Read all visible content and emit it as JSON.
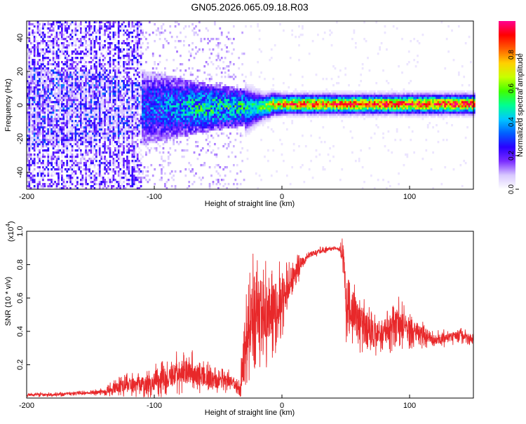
{
  "chart_data": [
    {
      "type": "heatmap",
      "title": "GN05.2026.065.09.18.R03",
      "xlabel": "Height of straight line (km)",
      "ylabel": "Frequency (Hz)",
      "xlim": [
        -200,
        150
      ],
      "ylim": [
        -50,
        50
      ],
      "xticks": [
        -200,
        -100,
        0,
        100
      ],
      "xtick_labels": [
        "-200",
        "-100",
        "0",
        "100"
      ],
      "yticks": [
        -40,
        -20,
        0,
        20,
        40
      ],
      "ytick_labels": [
        "-40",
        "-20",
        "0",
        "20",
        "40"
      ],
      "colorbar": {
        "label": "Normalized spectral amplitude",
        "range": [
          0,
          1
        ],
        "ticks": [
          0.0,
          0.2,
          0.4,
          0.6,
          0.8
        ],
        "tick_labels": [
          "0.0",
          "0.2",
          "0.4",
          "0.6",
          "0.8"
        ],
        "colors": [
          "#ffffff",
          "#d8c8ff",
          "#7a2cff",
          "#2a00ff",
          "#0060ff",
          "#00c8ff",
          "#00ff90",
          "#40ff00",
          "#c8ff00",
          "#ffd000",
          "#ff6000",
          "#ff0000",
          "#ff0090"
        ]
      },
      "profile": {
        "band_halfwidth_hz": [
          [
            -200,
            24
          ],
          [
            -140,
            20
          ],
          [
            -110,
            14
          ],
          [
            -60,
            9
          ],
          [
            -30,
            7
          ],
          [
            -15,
            4
          ],
          [
            0,
            3
          ],
          [
            150,
            3
          ]
        ],
        "center_amplitude": [
          [
            -200,
            0.25
          ],
          [
            -140,
            0.25
          ],
          [
            -100,
            0.35
          ],
          [
            -60,
            0.5
          ],
          [
            -20,
            0.5
          ],
          [
            0,
            0.85
          ],
          [
            150,
            0.9
          ]
        ]
      }
    },
    {
      "type": "line",
      "xlabel": "Height of straight line (km)",
      "ylabel": "SNR (10 * v/v)",
      "multiplier_label": "(x10",
      "multiplier_exp": "4",
      "multiplier_close": ")",
      "xlim": [
        -200,
        150
      ],
      "ylim": [
        0,
        1.0
      ],
      "xticks": [
        -200,
        -100,
        0,
        100
      ],
      "xtick_labels": [
        "-200",
        "-100",
        "0",
        "100"
      ],
      "yticks": [
        0.2,
        0.4,
        0.6,
        0.8,
        1.0
      ],
      "ytick_labels": [
        "0.2",
        "0.4",
        "0.6",
        "0.8",
        "1.0"
      ],
      "series": [
        {
          "name": "SNR",
          "color": "#e8282a",
          "x": [
            -200,
            -180,
            -160,
            -150,
            -140,
            -130,
            -120,
            -110,
            -100,
            -90,
            -80,
            -70,
            -60,
            -50,
            -40,
            -35,
            -33,
            -30,
            -28,
            -25,
            -20,
            -15,
            -10,
            -5,
            0,
            5,
            10,
            15,
            20,
            25,
            30,
            40,
            45,
            48,
            50,
            55,
            60,
            70,
            80,
            90,
            100,
            110,
            120,
            130,
            140,
            150
          ],
          "y": [
            0.02,
            0.02,
            0.03,
            0.03,
            0.04,
            0.06,
            0.08,
            0.08,
            0.1,
            0.12,
            0.16,
            0.15,
            0.12,
            0.1,
            0.1,
            0.08,
            0.05,
            0.25,
            0.35,
            0.45,
            0.55,
            0.52,
            0.5,
            0.55,
            0.6,
            0.68,
            0.75,
            0.8,
            0.85,
            0.87,
            0.88,
            0.9,
            0.89,
            0.85,
            0.6,
            0.55,
            0.45,
            0.38,
            0.4,
            0.45,
            0.42,
            0.38,
            0.35,
            0.36,
            0.38,
            0.35
          ],
          "noise_amplitude": [
            0.01,
            0.01,
            0.01,
            0.01,
            0.02,
            0.04,
            0.06,
            0.06,
            0.08,
            0.08,
            0.1,
            0.1,
            0.08,
            0.06,
            0.05,
            0.04,
            0.03,
            0.22,
            0.28,
            0.3,
            0.3,
            0.25,
            0.22,
            0.2,
            0.18,
            0.12,
            0.08,
            0.05,
            0.02,
            0.02,
            0.02,
            0.01,
            0.01,
            0.1,
            0.2,
            0.18,
            0.15,
            0.12,
            0.1,
            0.12,
            0.1,
            0.06,
            0.04,
            0.04,
            0.04,
            0.03
          ]
        }
      ]
    }
  ]
}
